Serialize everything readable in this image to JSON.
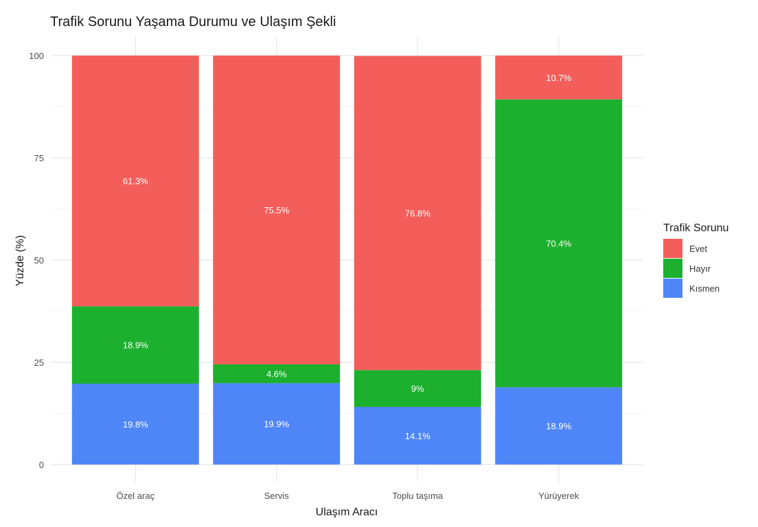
{
  "chart_data": {
    "type": "bar",
    "stacked": true,
    "title": "Trafik Sorunu Yaşama Durumu ve Ulaşım Şekli",
    "xlabel": "Ulaşım Aracı",
    "ylabel": "Yüzde (%)",
    "ylim": [
      0,
      100
    ],
    "yticks": [
      0,
      25,
      50,
      75,
      100
    ],
    "grid": true,
    "legend": {
      "title": "Trafik Sorunu",
      "placement": "right"
    },
    "categories": [
      "Özel araç",
      "Servis",
      "Toplu taşıma",
      "Yürüyerek"
    ],
    "series": [
      {
        "name": "Kısmen",
        "color": "#4F86F7",
        "values": [
          19.8,
          19.9,
          14.1,
          18.9
        ],
        "labels": [
          "19.8%",
          "19.9%",
          "14.1%",
          "18.9%"
        ]
      },
      {
        "name": "Hayır",
        "color": "#1CB02E",
        "values": [
          18.9,
          4.6,
          9,
          70.4
        ],
        "labels": [
          "18.9%",
          "4.6%",
          "9%",
          "70.4%"
        ]
      },
      {
        "name": "Evet",
        "color": "#F35E5A",
        "values": [
          61.3,
          75.5,
          76.8,
          10.7
        ],
        "labels": [
          "61.3%",
          "75.5%",
          "76.8%",
          "10.7%"
        ]
      }
    ],
    "legend_order": [
      "Evet",
      "Hayır",
      "Kısmen"
    ]
  }
}
